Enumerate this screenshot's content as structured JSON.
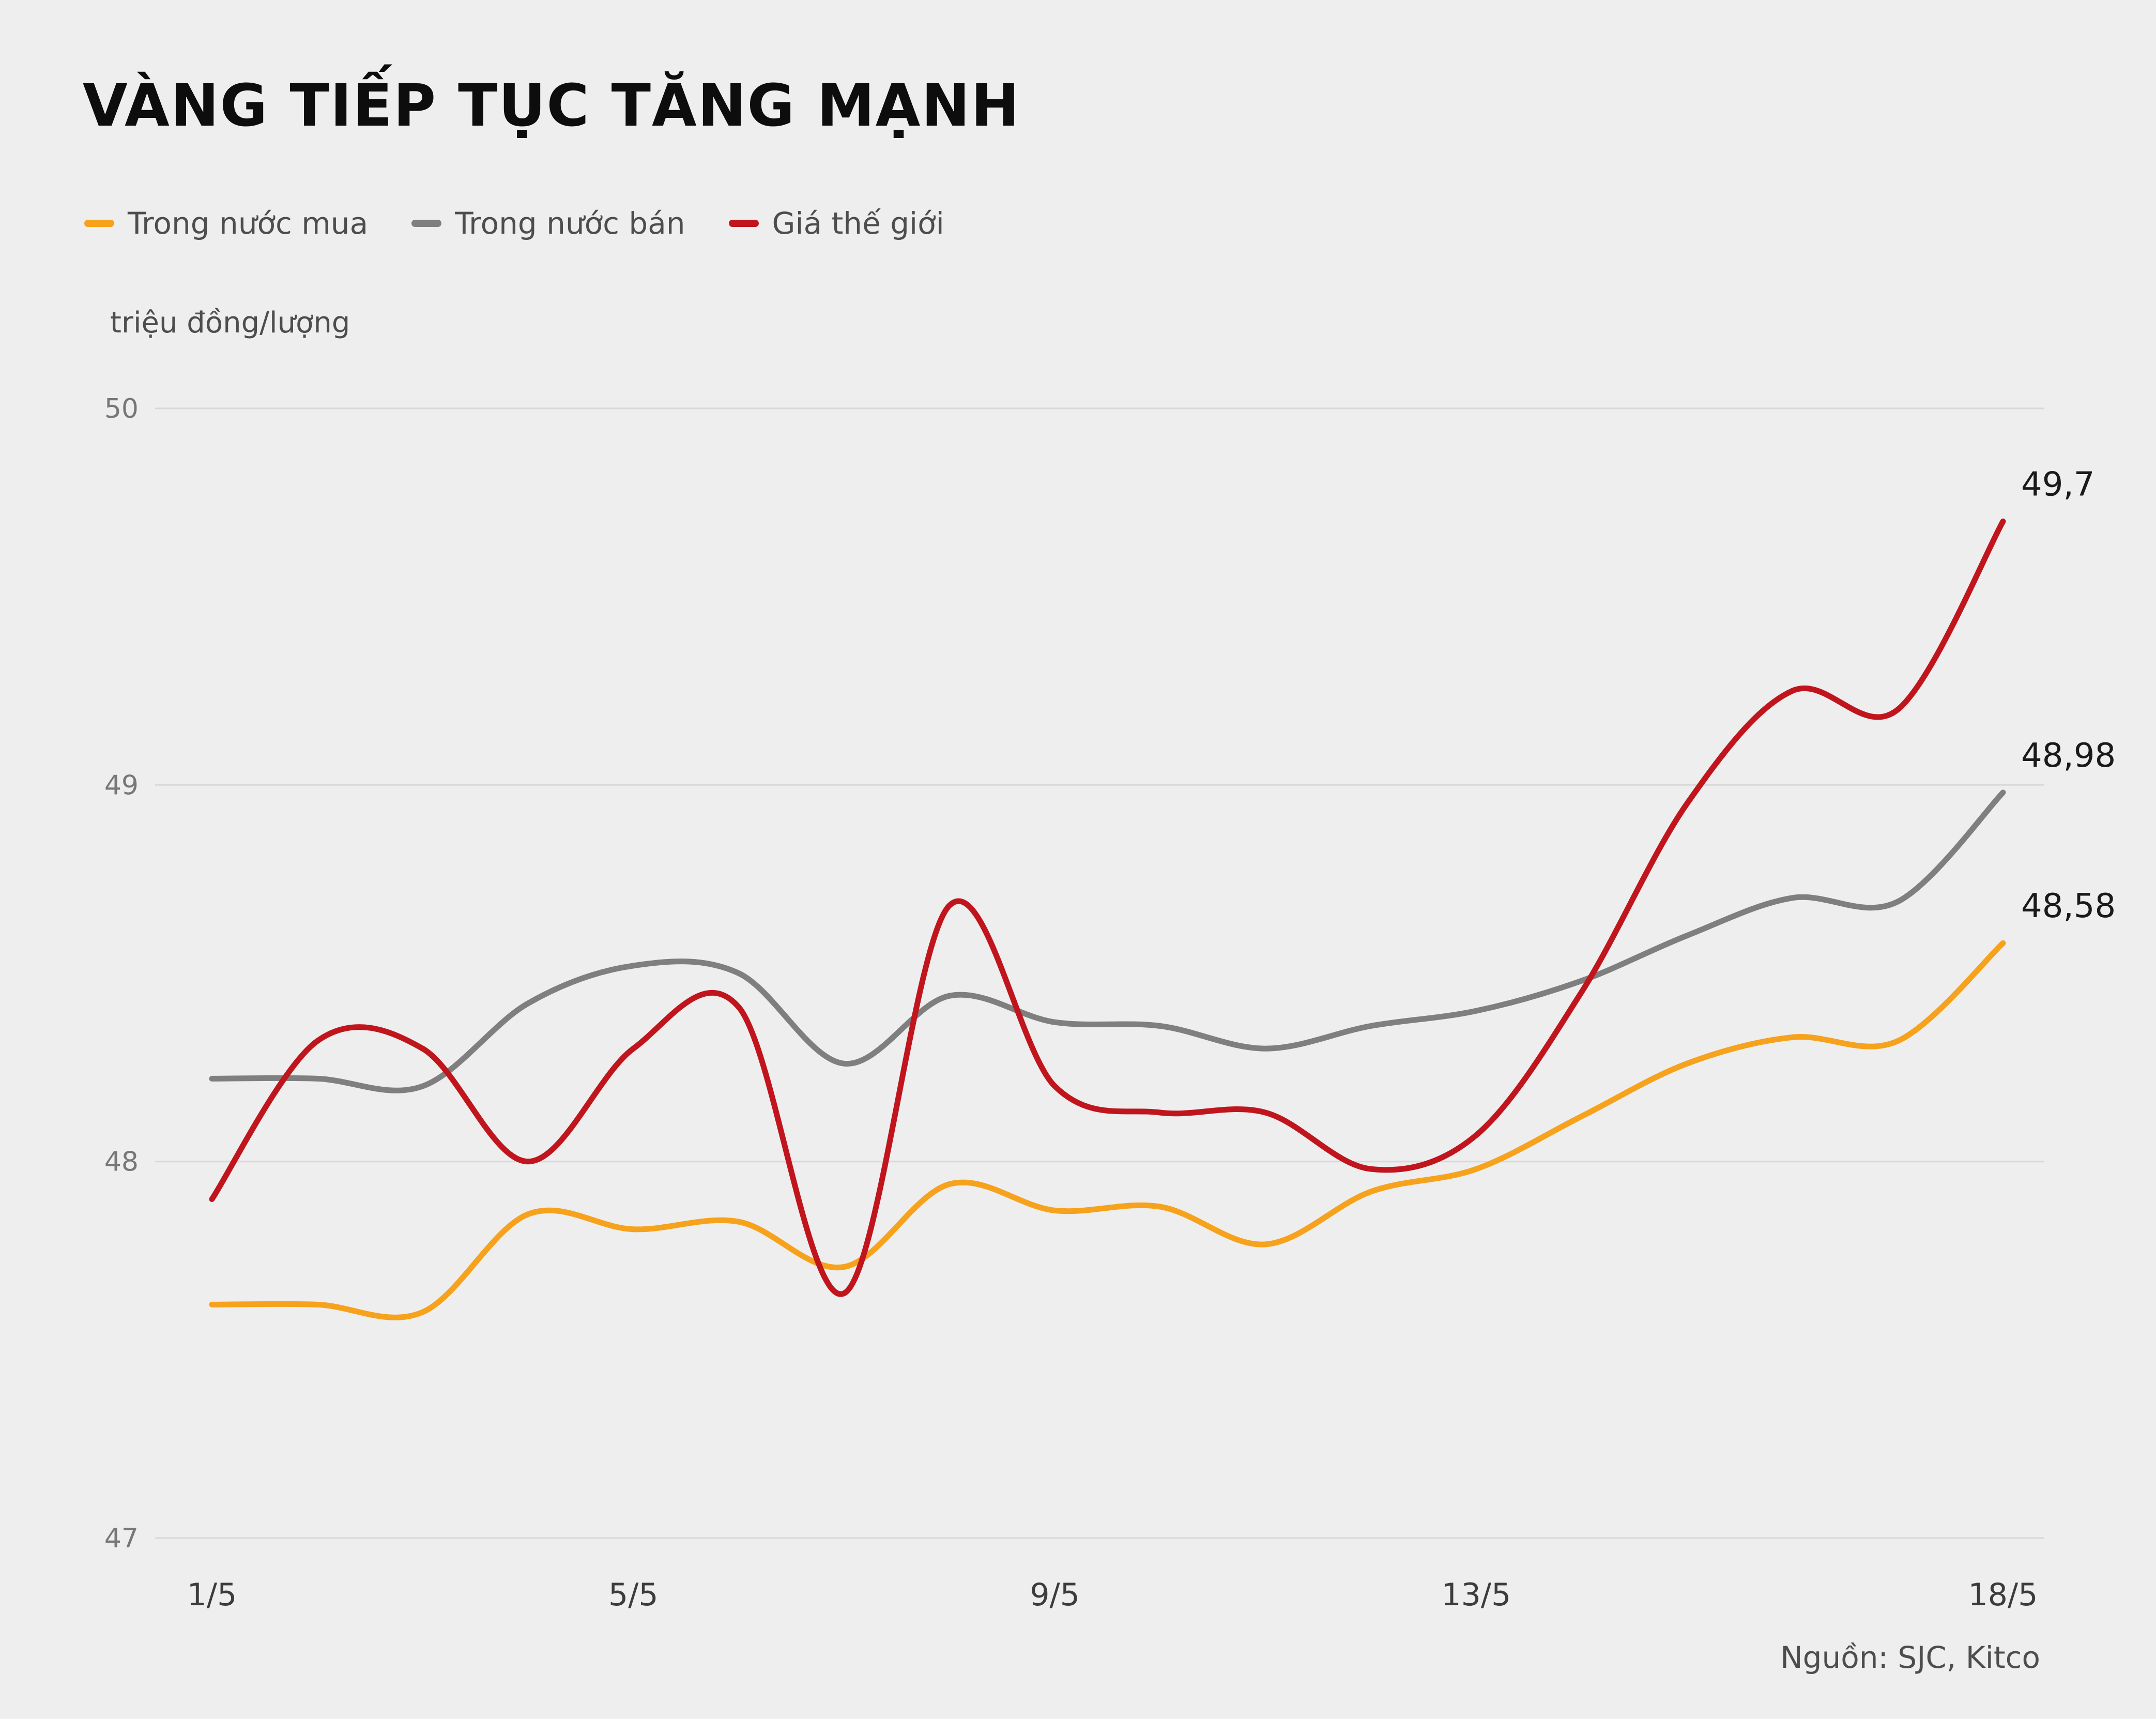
{
  "title": "VÀNG TIẾP TỤC TĂNG MẠNH",
  "unit_label": "triệu đồng/lượng",
  "source": "Nguồn: SJC, Kitco",
  "legend": [
    {
      "label": "Trong nước mua",
      "color": "#f6a21c"
    },
    {
      "label": "Trong nước bán",
      "color": "#7f7f7f"
    },
    {
      "label": "Giá thế giới",
      "color": "#c0151d"
    }
  ],
  "colors": {
    "background": "#eeeeee",
    "grid": "#d8d8d8",
    "axis_text": "#777777",
    "x_axis_text": "#3c3c3c",
    "end_label_text": "#1a1a1a"
  },
  "chart_data": {
    "type": "line",
    "title": "VÀNG TIẾP TỤC TĂNG MẠNH",
    "ylabel": "triệu đồng/lượng",
    "xlabel": "",
    "grid": true,
    "legend_position": "top-left",
    "ylim": [
      47,
      50
    ],
    "y_ticks": [
      50,
      49,
      48,
      47
    ],
    "x": [
      "1/5",
      "2/5",
      "3/5",
      "4/5",
      "5/5",
      "6/5",
      "7/5",
      "8/5",
      "9/5",
      "10/5",
      "11/5",
      "12/5",
      "13/5",
      "14/5",
      "15/5",
      "16/5",
      "17/5",
      "18/5"
    ],
    "x_tick_labels": [
      "1/5",
      "5/5",
      "9/5",
      "13/5",
      "18/5"
    ],
    "series": [
      {
        "name": "Trong nước mua",
        "color": "#f6a21c",
        "end_label": "48,58",
        "values": [
          47.62,
          47.62,
          47.6,
          47.86,
          47.82,
          47.84,
          47.72,
          47.94,
          47.87,
          47.88,
          47.78,
          47.92,
          47.98,
          48.12,
          48.26,
          48.33,
          48.32,
          48.58
        ]
      },
      {
        "name": "Trong nước bán",
        "color": "#7f7f7f",
        "end_label": "48,98",
        "values": [
          48.22,
          48.22,
          48.2,
          48.42,
          48.52,
          48.5,
          48.26,
          48.44,
          48.37,
          48.36,
          48.3,
          48.36,
          48.4,
          48.48,
          48.6,
          48.7,
          48.69,
          48.98
        ]
      },
      {
        "name": "Giá thế giới",
        "color": "#c0151d",
        "end_label": "49,7",
        "values": [
          47.9,
          48.32,
          48.3,
          48.0,
          48.3,
          48.41,
          47.65,
          48.68,
          48.2,
          48.13,
          48.13,
          47.98,
          48.07,
          48.45,
          48.95,
          49.25,
          49.2,
          49.7
        ]
      }
    ]
  }
}
